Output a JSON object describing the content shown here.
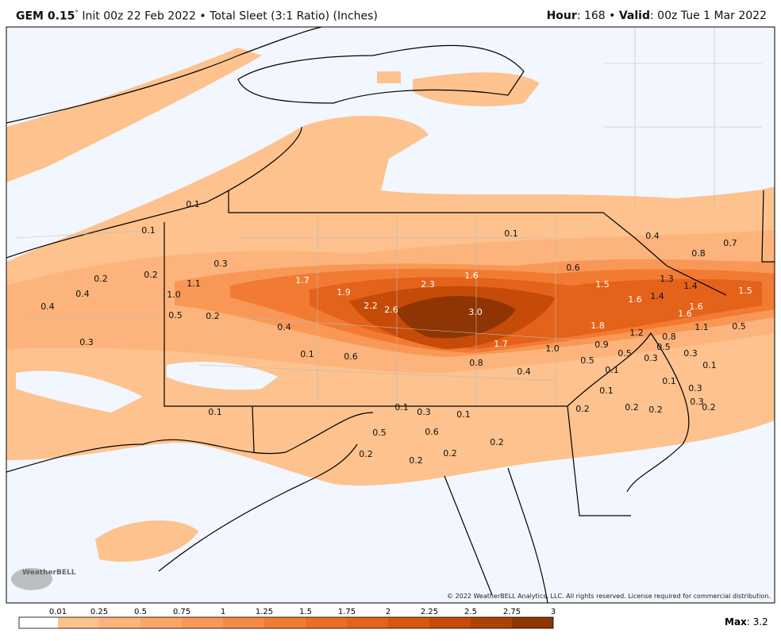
{
  "header": {
    "model": "GEM 0.15",
    "degree": "°",
    "description": "Init 00z 22 Feb 2022 • Total Sleet (3:1 Ratio) (Inches)",
    "hour_label": "Hour",
    "hour_text": ": 168 • ",
    "valid_label": "Valid",
    "valid_text": ": 00z Tue 1 Mar 2022"
  },
  "map": {
    "labels": [
      "0.1",
      "0.1",
      "0.3",
      "0.2",
      "0.2",
      "1.1",
      "0.4",
      "0.4",
      "1.0",
      "0.5",
      "0.2",
      "0.3",
      "1.7",
      "1.9",
      "2.3",
      "1.6",
      "2.2",
      "2.6",
      "3.0",
      "0.4",
      "0.1",
      "0.6",
      "1.7",
      "0.8",
      "0.4",
      "1.0",
      "0.1",
      "0.6",
      "1.5",
      "0.4",
      "0.8",
      "0.7",
      "1.3",
      "1.4",
      "1.5",
      "1.6",
      "1.4",
      "1.6",
      "1.6",
      "1.8",
      "1.2",
      "0.9",
      "0.8",
      "0.5",
      "0.5",
      "0.3",
      "0.3",
      "0.5",
      "0.1",
      "0.1",
      "0.1",
      "0.3",
      "0.1",
      "0.3",
      "0.2",
      "0.2",
      "0.2",
      "0.2",
      "0.1",
      "0.1",
      "0.3",
      "0.1",
      "0.5",
      "0.6",
      "0.2",
      "0.2",
      "0.2",
      "0.2",
      "0.5",
      "1.1"
    ],
    "copyright": "© 2022 WeatherBELL Analytics, LLC. All rights reserved. License required for commercial distribution.",
    "logo": "WeatherBELL"
  },
  "colorbar": {
    "ticks": [
      0.01,
      0.25,
      0.5,
      0.75,
      1,
      1.25,
      1.5,
      1.75,
      2,
      2.25,
      2.5,
      2.75,
      3
    ],
    "colors": [
      "#ffffff",
      "#fdc28e",
      "#fcb47c",
      "#fba669",
      "#f99856",
      "#f68944",
      "#f27b34",
      "#ec6e26",
      "#e4621a",
      "#d8560f",
      "#c64b08",
      "#ae4105",
      "#8e3503"
    ],
    "max_label": "Max",
    "max_text": ": 3.2"
  }
}
